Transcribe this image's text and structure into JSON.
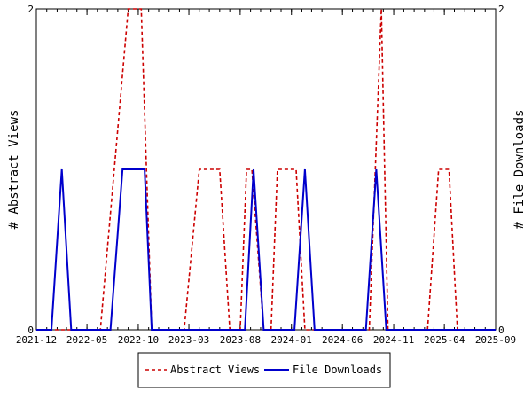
{
  "chart_data": {
    "type": "line",
    "x_tick_labels": [
      "2021-12",
      "2022-05",
      "2022-10",
      "2023-03",
      "2023-08",
      "2024-01",
      "2024-06",
      "2024-11",
      "2025-04",
      "2025-09"
    ],
    "xlim": [
      "2021-12",
      "2025-09"
    ],
    "ylabel": "# Abstract Views",
    "y2label": "# File Downloads",
    "ylim": [
      0,
      2
    ],
    "y2lim": [
      0,
      2
    ],
    "y_ticks": [
      "0",
      "2"
    ],
    "y2_ticks": [
      "0",
      "2"
    ],
    "grid": false,
    "legend_position": "bottom-center",
    "series": [
      {
        "name": "Abstract Views",
        "color": "#cc0000",
        "dash": "dashed",
        "axis": "left",
        "points": [
          [
            "2021-12-01",
            0
          ],
          [
            "2022-06-10",
            0
          ],
          [
            "2022-09-01",
            2
          ],
          [
            "2022-10-10",
            2
          ],
          [
            "2022-11-10",
            0
          ],
          [
            "2023-02-15",
            0
          ],
          [
            "2023-04-01",
            1
          ],
          [
            "2023-06-01",
            1
          ],
          [
            "2023-07-01",
            0
          ],
          [
            "2023-08-01",
            0
          ],
          [
            "2023-08-20",
            1
          ],
          [
            "2023-09-05",
            1
          ],
          [
            "2023-10-10",
            0
          ],
          [
            "2023-11-01",
            0
          ],
          [
            "2023-11-20",
            1
          ],
          [
            "2024-01-15",
            1
          ],
          [
            "2024-02-10",
            0
          ],
          [
            "2024-08-20",
            0
          ],
          [
            "2024-09-25",
            2
          ],
          [
            "2024-10-15",
            0
          ],
          [
            "2025-02-10",
            0
          ],
          [
            "2025-03-15",
            1
          ],
          [
            "2025-04-15",
            1
          ],
          [
            "2025-05-10",
            0
          ],
          [
            "2025-09-01",
            0
          ]
        ]
      },
      {
        "name": "File Downloads",
        "color": "#0000cc",
        "dash": "solid",
        "axis": "right",
        "points": [
          [
            "2021-12-01",
            0
          ],
          [
            "2022-01-15",
            0
          ],
          [
            "2022-02-15",
            1
          ],
          [
            "2022-03-15",
            0
          ],
          [
            "2022-07-10",
            0
          ],
          [
            "2022-08-15",
            1
          ],
          [
            "2022-10-20",
            1
          ],
          [
            "2022-11-10",
            0
          ],
          [
            "2023-08-15",
            0
          ],
          [
            "2023-09-10",
            1
          ],
          [
            "2023-10-10",
            0
          ],
          [
            "2024-01-10",
            0
          ],
          [
            "2024-02-10",
            1
          ],
          [
            "2024-03-10",
            0
          ],
          [
            "2024-08-10",
            0
          ],
          [
            "2024-09-10",
            1
          ],
          [
            "2024-10-10",
            0
          ],
          [
            "2025-09-01",
            0
          ]
        ]
      }
    ]
  }
}
